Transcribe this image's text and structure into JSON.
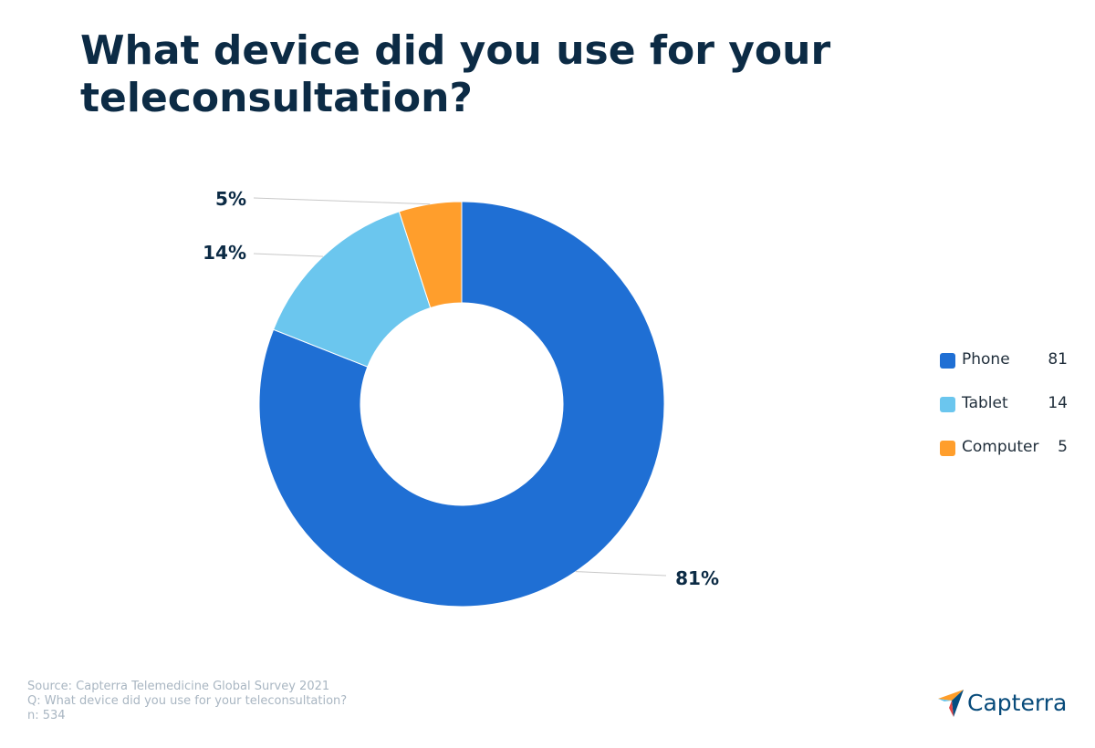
{
  "title": "What device did you use for your teleconsultation?",
  "chart_data": {
    "type": "pie",
    "style": "donut",
    "categories": [
      "Phone",
      "Tablet",
      "Computer"
    ],
    "values": [
      81,
      14,
      5
    ],
    "data_labels": [
      "81%",
      "14%",
      "5%"
    ],
    "colors": [
      "#1f6fd4",
      "#6bc6ee",
      "#ff9e2c"
    ],
    "legend_position": "right"
  },
  "legend": [
    {
      "label": "Phone",
      "value": "81"
    },
    {
      "label": "Tablet",
      "value": "14"
    },
    {
      "label": "Computer",
      "value": "5"
    }
  ],
  "footer": {
    "source": "Source: Capterra Telemedicine Global Survey 2021",
    "question": "Q: What device did you use for your teleconsultation?",
    "n": "n: 534"
  },
  "logo": {
    "text": "Capterra",
    "icon": "capterra-arrow-icon"
  }
}
